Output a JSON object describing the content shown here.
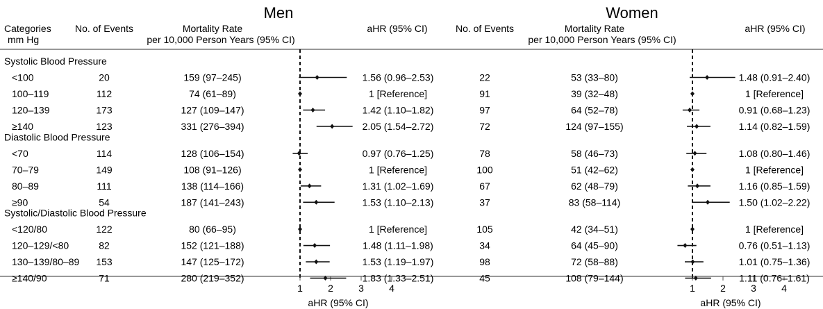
{
  "panels": {
    "men": {
      "title": "Men",
      "events_header": "No. of Events",
      "rate_header": [
        "Mortality Rate",
        "per 10,000 Person Years (95% CI)"
      ],
      "ahr_header": "aHR (95% CI)"
    },
    "women": {
      "title": "Women",
      "events_header": "No. of Events",
      "rate_header": [
        "Mortality Rate",
        "per 10,000 Person Years (95% CI)"
      ],
      "ahr_header": "aHR (95% CI)"
    }
  },
  "category_header": [
    "Categories",
    "mm Hg"
  ],
  "axis_label": "aHR (95% CI)",
  "groups": [
    {
      "label": "Systolic Blood Pressure",
      "rows": [
        {
          "label": "<100",
          "men": {
            "events": "20",
            "rate": "159 (97–245)",
            "ahr_text": "1.56 (0.96–2.53)",
            "hr": 1.56,
            "lo": 0.96,
            "hi": 2.53
          },
          "women": {
            "events": "22",
            "rate": "53 (33–80)",
            "ahr_text": "1.48 (0.91–2.40)",
            "hr": 1.48,
            "lo": 0.91,
            "hi": 2.4
          }
        },
        {
          "label": "100–119",
          "men": {
            "events": "112",
            "rate": "74 (61–89)",
            "ahr_text": "1 [Reference]",
            "hr": 1,
            "lo": 1,
            "hi": 1
          },
          "women": {
            "events": "91",
            "rate": "39 (32–48)",
            "ahr_text": "1 [Reference]",
            "hr": 1,
            "lo": 1,
            "hi": 1
          }
        },
        {
          "label": "120–139",
          "men": {
            "events": "173",
            "rate": "127 (109–147)",
            "ahr_text": "1.42 (1.10–1.82)",
            "hr": 1.42,
            "lo": 1.1,
            "hi": 1.82
          },
          "women": {
            "events": "97",
            "rate": "64 (52–78)",
            "ahr_text": "0.91 (0.68–1.23)",
            "hr": 0.91,
            "lo": 0.68,
            "hi": 1.23
          }
        },
        {
          "label": "≥140",
          "men": {
            "events": "123",
            "rate": "331 (276–394)",
            "ahr_text": "2.05 (1.54–2.72)",
            "hr": 2.05,
            "lo": 1.54,
            "hi": 2.72
          },
          "women": {
            "events": "72",
            "rate": "124 (97–155)",
            "ahr_text": "1.14 (0.82–1.59)",
            "hr": 1.14,
            "lo": 0.82,
            "hi": 1.59
          }
        }
      ]
    },
    {
      "label": "Diastolic Blood Pressure",
      "rows": [
        {
          "label": "<70",
          "men": {
            "events": "114",
            "rate": "128 (106–154)",
            "ahr_text": "0.97 (0.76–1.25)",
            "hr": 0.97,
            "lo": 0.76,
            "hi": 1.25
          },
          "women": {
            "events": "78",
            "rate": "58 (46–73)",
            "ahr_text": "1.08 (0.80–1.46)",
            "hr": 1.08,
            "lo": 0.8,
            "hi": 1.46
          }
        },
        {
          "label": "70–79",
          "men": {
            "events": "149",
            "rate": "108 (91–126)",
            "ahr_text": "1 [Reference]",
            "hr": 1,
            "lo": 1,
            "hi": 1
          },
          "women": {
            "events": "100",
            "rate": "51 (42–62)",
            "ahr_text": "1 [Reference]",
            "hr": 1,
            "lo": 1,
            "hi": 1
          }
        },
        {
          "label": "80–89",
          "men": {
            "events": "111",
            "rate": "138 (114–166)",
            "ahr_text": "1.31 (1.02–1.69)",
            "hr": 1.31,
            "lo": 1.02,
            "hi": 1.69
          },
          "women": {
            "events": "67",
            "rate": "62 (48–79)",
            "ahr_text": "1.16 (0.85–1.59)",
            "hr": 1.16,
            "lo": 0.85,
            "hi": 1.59
          }
        },
        {
          "label": "≥90",
          "men": {
            "events": "54",
            "rate": "187 (141–243)",
            "ahr_text": "1.53 (1.10–2.13)",
            "hr": 1.53,
            "lo": 1.1,
            "hi": 2.13
          },
          "women": {
            "events": "37",
            "rate": "83 (58–114)",
            "ahr_text": "1.50 (1.02–2.22)",
            "hr": 1.5,
            "lo": 1.02,
            "hi": 2.22
          }
        }
      ]
    },
    {
      "label": "Systolic/Diastolic Blood Pressure",
      "rows": [
        {
          "label": "<120/80",
          "men": {
            "events": "122",
            "rate": "80 (66–95)",
            "ahr_text": "1 [Reference]",
            "hr": 1,
            "lo": 1,
            "hi": 1
          },
          "women": {
            "events": "105",
            "rate": "42 (34–51)",
            "ahr_text": "1 [Reference]",
            "hr": 1,
            "lo": 1,
            "hi": 1
          }
        },
        {
          "label": "120–129/<80",
          "men": {
            "events": "82",
            "rate": "152 (121–188)",
            "ahr_text": "1.48 (1.11–1.98)",
            "hr": 1.48,
            "lo": 1.11,
            "hi": 1.98
          },
          "women": {
            "events": "34",
            "rate": "64 (45–90)",
            "ahr_text": "0.76 (0.51–1.13)",
            "hr": 0.76,
            "lo": 0.51,
            "hi": 1.13
          }
        },
        {
          "label": "130–139/80–89",
          "men": {
            "events": "153",
            "rate": "147 (125–172)",
            "ahr_text": "1.53 (1.19–1.97)",
            "hr": 1.53,
            "lo": 1.19,
            "hi": 1.97
          },
          "women": {
            "events": "98",
            "rate": "72 (58–88)",
            "ahr_text": "1.01 (0.75–1.36)",
            "hr": 1.01,
            "lo": 0.75,
            "hi": 1.36
          }
        },
        {
          "label": "≥140/90",
          "men": {
            "events": "71",
            "rate": "280 (219–352)",
            "ahr_text": "1.83 (1.33–2.51)",
            "hr": 1.83,
            "lo": 1.33,
            "hi": 2.51
          },
          "women": {
            "events": "45",
            "rate": "108 (79–144)",
            "ahr_text": "1.11 (0.76–1.61)",
            "hr": 1.11,
            "lo": 0.76,
            "hi": 1.61
          }
        }
      ]
    }
  ],
  "chart_data": {
    "type": "forest",
    "xlabel": "aHR (95% CI)",
    "xticks": [
      1,
      2,
      3,
      4
    ],
    "xlim": [
      0.5,
      4.3
    ],
    "reference_line": 1,
    "panels": [
      "Men",
      "Women"
    ]
  },
  "colors": {
    "line": "#111111",
    "rule": "#777777",
    "marker": "#111111"
  }
}
